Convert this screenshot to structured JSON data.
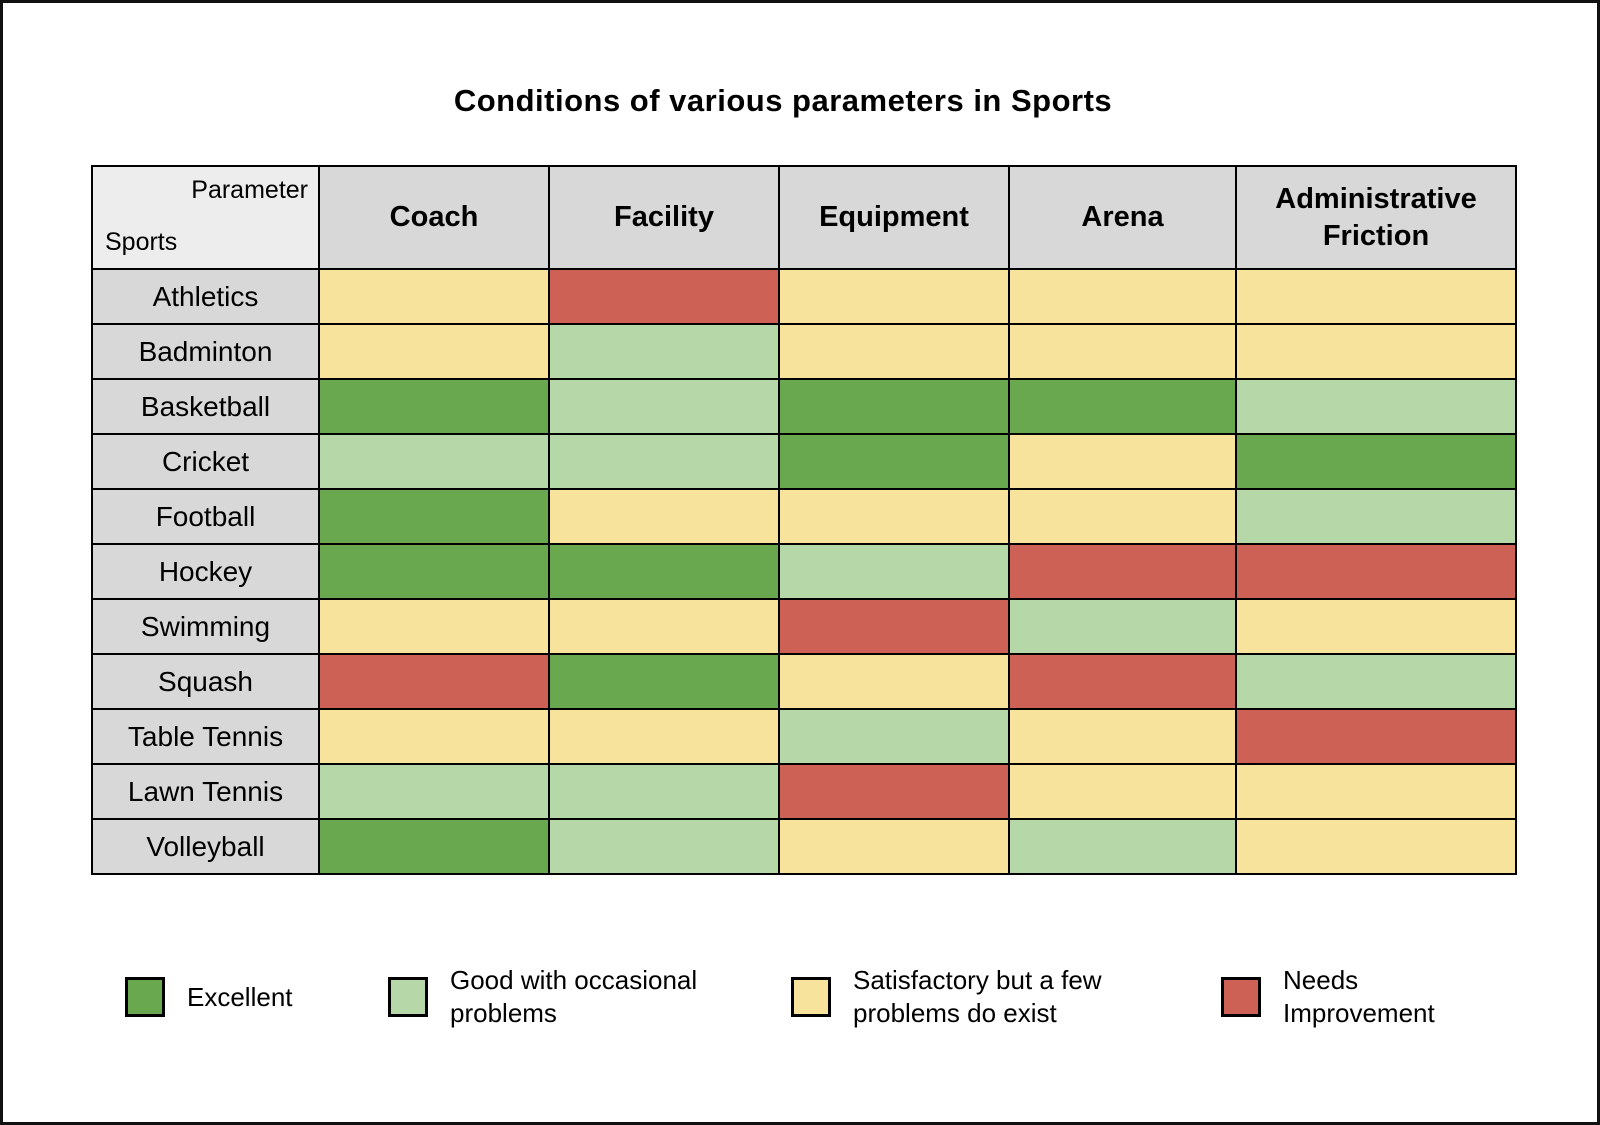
{
  "page": {
    "title": "Conditions of various parameters in Sports"
  },
  "table": {
    "corner": {
      "top_label": "Parameter",
      "bottom_label": "Sports"
    }
  },
  "chart_data": {
    "type": "heatmap",
    "title": "Conditions of various parameters in Sports",
    "x_categories": [
      "Coach",
      "Facility",
      "Equipment",
      "Arena",
      "Administrative Friction"
    ],
    "y_categories": [
      "Athletics",
      "Badminton",
      "Basketball",
      "Cricket",
      "Football",
      "Hockey",
      "Swimming",
      "Squash",
      "Table Tennis",
      "Lawn Tennis",
      "Volleyball"
    ],
    "levels": [
      {
        "key": "E",
        "label": "Excellent",
        "color": "#6aa84f"
      },
      {
        "key": "G",
        "label": "Good with occasional problems",
        "color": "#b6d7a8"
      },
      {
        "key": "S",
        "label": "Satisfactory but a few problems do exist",
        "color": "#f8e39c"
      },
      {
        "key": "N",
        "label": "Needs Improvement",
        "color": "#cd6155"
      }
    ],
    "cells": [
      [
        "S",
        "N",
        "S",
        "S",
        "S"
      ],
      [
        "S",
        "G",
        "S",
        "S",
        "S"
      ],
      [
        "E",
        "G",
        "E",
        "E",
        "G"
      ],
      [
        "G",
        "G",
        "E",
        "S",
        "E"
      ],
      [
        "E",
        "S",
        "S",
        "S",
        "G"
      ],
      [
        "E",
        "E",
        "G",
        "N",
        "N"
      ],
      [
        "S",
        "S",
        "N",
        "G",
        "S"
      ],
      [
        "N",
        "E",
        "S",
        "N",
        "G"
      ],
      [
        "S",
        "S",
        "G",
        "S",
        "N"
      ],
      [
        "G",
        "G",
        "N",
        "S",
        "S"
      ],
      [
        "E",
        "G",
        "S",
        "G",
        "S"
      ]
    ],
    "legend_position": "bottom",
    "grid": true
  }
}
